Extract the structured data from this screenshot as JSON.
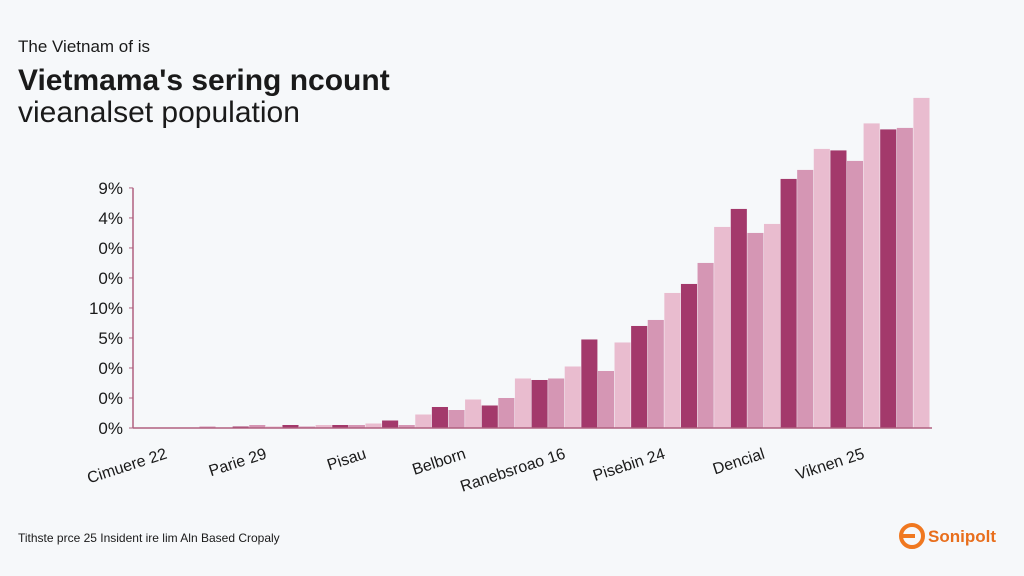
{
  "chart_data": {
    "type": "bar",
    "subtitle": "The Vietnam of is",
    "title": [
      "Vietmama's sering ncount",
      "vieanalset population"
    ],
    "categories": [
      "Cimuere 22",
      null,
      "Parie 29",
      null,
      "Pisau",
      null,
      "Belborn",
      null,
      "Ranebsroao 16",
      null,
      "Pisebin 24",
      null,
      "Dencial",
      null,
      "Viknen 25",
      null
    ],
    "series": [
      {
        "color": "#a3396b",
        "values": [
          0,
          0,
          0.05,
          0.1,
          0.1,
          0.25,
          0.7,
          0.75,
          1.6,
          2.95,
          3.4,
          4.8,
          7.3,
          8.3,
          9.25,
          9.95
        ]
      },
      {
        "color": "#d596b4",
        "values": [
          0,
          0.05,
          0.1,
          0.05,
          0.1,
          0.1,
          0.6,
          1.0,
          1.65,
          1.9,
          3.6,
          5.5,
          6.5,
          8.6,
          8.9,
          10.0
        ]
      },
      {
        "color": "#e9bccf",
        "values": [
          0,
          0,
          0.05,
          0.1,
          0.15,
          0.45,
          0.95,
          1.65,
          2.05,
          2.85,
          4.5,
          6.7,
          6.8,
          9.3,
          10.15,
          11.0
        ]
      }
    ],
    "ylim": [
      0,
      11.03
    ],
    "yticks": [
      {
        "value": 8,
        "label": "9%"
      },
      {
        "value": 7,
        "label": "4%"
      },
      {
        "value": 6,
        "label": "0%"
      },
      {
        "value": 5,
        "label": "0%"
      },
      {
        "value": 4,
        "label": "10%"
      },
      {
        "value": 3,
        "label": "5%"
      },
      {
        "value": 2,
        "label": "0%"
      },
      {
        "value": 1,
        "label": "0%"
      },
      {
        "value": 0,
        "label": "0%"
      }
    ],
    "footnote": "Tithste prce 25 Insident ire lim Aln Based Cropaly",
    "brand": "Sonipolt"
  }
}
